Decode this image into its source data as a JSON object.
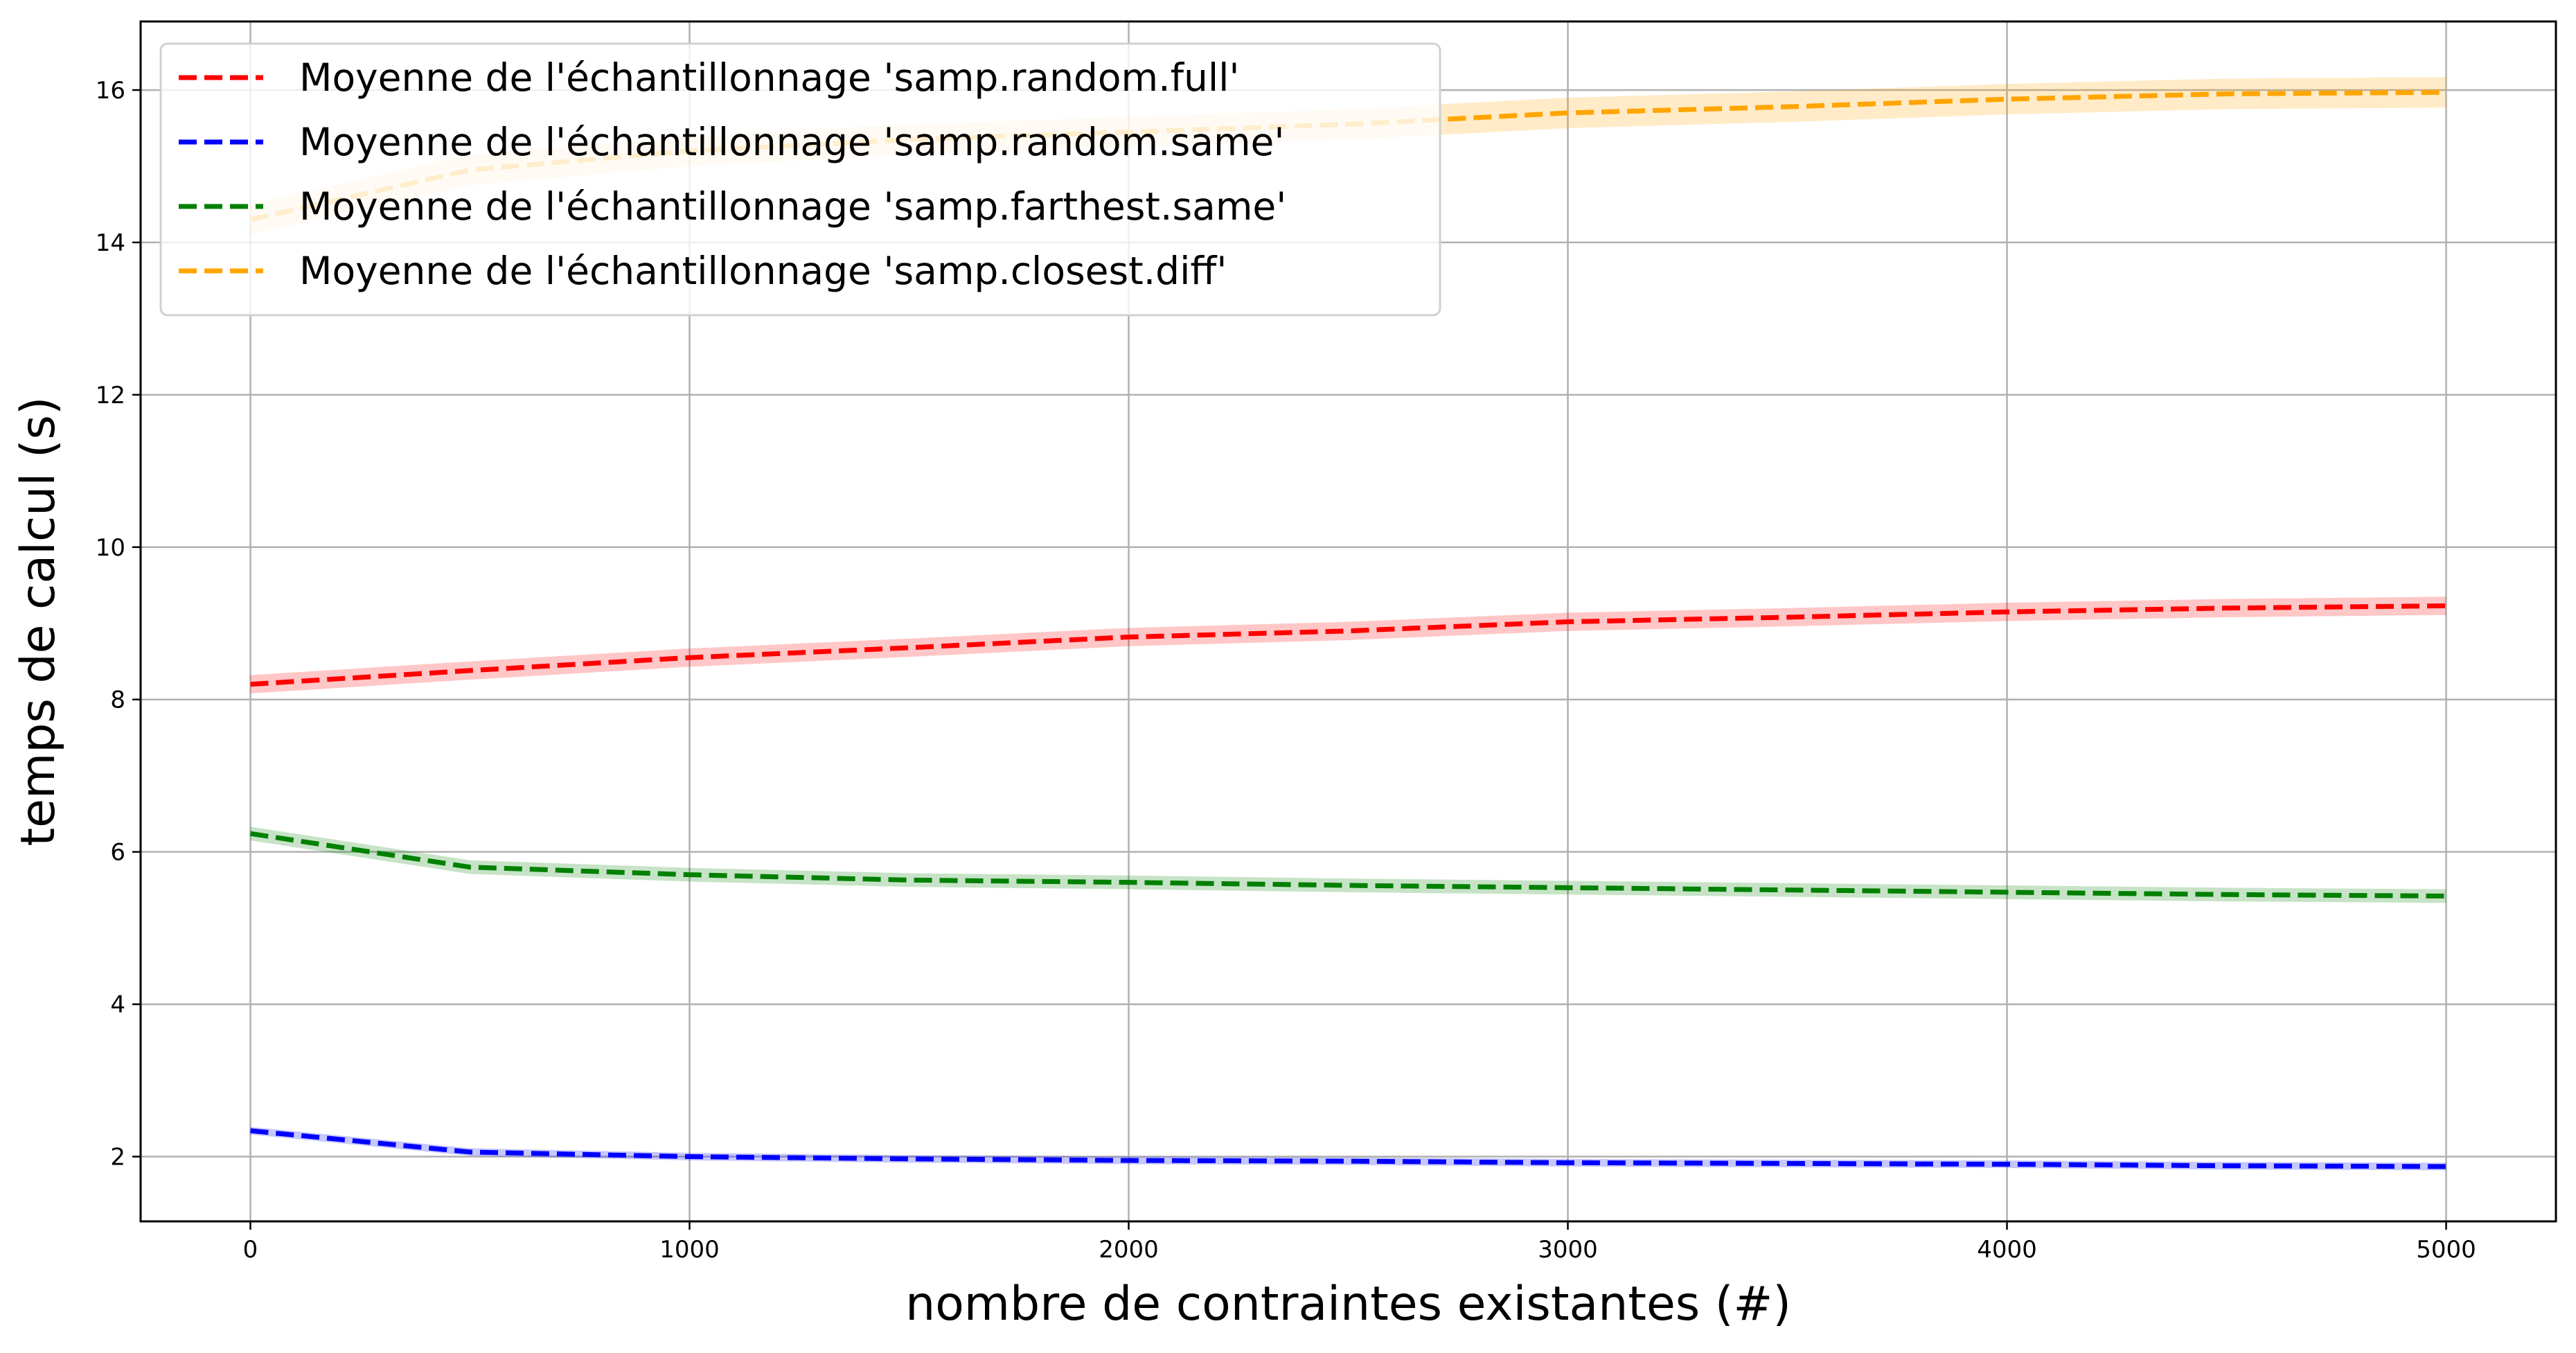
{
  "chart_data": {
    "type": "line",
    "xlabel": "nombre de contraintes existantes (#)",
    "ylabel": "temps de calcul (s)",
    "xlim": [
      -250,
      5250
    ],
    "ylim": [
      1.15,
      16.9
    ],
    "x_ticks": [
      0,
      1000,
      2000,
      3000,
      4000,
      5000
    ],
    "y_ticks": [
      2,
      4,
      6,
      8,
      10,
      12,
      14,
      16
    ],
    "grid": true,
    "legend_position": "top-left",
    "x": [
      0,
      500,
      1000,
      1500,
      2000,
      2500,
      3000,
      3500,
      4000,
      4500,
      5000
    ],
    "series": [
      {
        "name": "Moyenne de l'échantillonnage 'samp.random.full'",
        "color": "#ff0000",
        "band_color": "#ff0000",
        "values": [
          8.2,
          8.38,
          8.55,
          8.68,
          8.82,
          8.9,
          9.02,
          9.08,
          9.15,
          9.2,
          9.23
        ],
        "band_halfwidth": 0.12
      },
      {
        "name": "Moyenne de l'échantillonnage 'samp.random.same'",
        "color": "#0000ff",
        "band_color": "#0000ff",
        "values": [
          2.34,
          2.06,
          2.0,
          1.97,
          1.95,
          1.94,
          1.92,
          1.91,
          1.9,
          1.88,
          1.87
        ],
        "band_halfwidth": 0.05
      },
      {
        "name": "Moyenne de l'échantillonnage 'samp.farthest.same'",
        "color": "#008000",
        "band_color": "#008000",
        "values": [
          6.24,
          5.8,
          5.7,
          5.63,
          5.6,
          5.56,
          5.53,
          5.5,
          5.47,
          5.44,
          5.42
        ],
        "band_halfwidth": 0.09
      },
      {
        "name": "Moyenne de l'échantillonnage 'samp.closest.diff'",
        "color": "#ffa500",
        "band_color": "#ffa500",
        "values": [
          14.3,
          14.95,
          15.2,
          15.35,
          15.45,
          15.55,
          15.7,
          15.78,
          15.88,
          15.95,
          15.97
        ],
        "band_halfwidth": 0.2
      }
    ]
  }
}
